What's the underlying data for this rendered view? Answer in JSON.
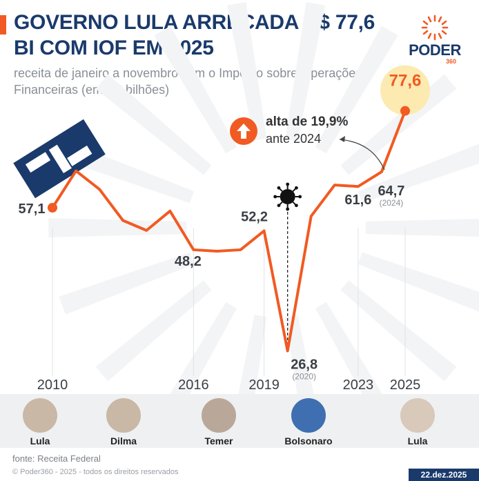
{
  "header": {
    "title": "GOVERNO LULA ARRECADA R$ 77,6 BI COM IOF EM 2025",
    "subtitle": "receita de janeiro a novembro com o Imposto sobre Operações Financeiras (em R$ bilhões)"
  },
  "brand": {
    "name": "PODER",
    "number": "360",
    "color": "#f15a22",
    "navy": "#1a3a6b"
  },
  "chart_data": {
    "type": "line",
    "title": "GOVERNO LULA ARRECADA R$ 77,6 BI COM IOF EM 2025",
    "ylabel": "",
    "xlabel": "",
    "ylim": [
      20,
      85
    ],
    "x": [
      2010,
      2011,
      2012,
      2013,
      2014,
      2015,
      2016,
      2017,
      2018,
      2019,
      2020,
      2021,
      2022,
      2023,
      2024,
      2025
    ],
    "series": [
      {
        "values": [
          57.1,
          64.9,
          61.0,
          54.4,
          52.3,
          56.4,
          48.2,
          47.9,
          48.2,
          52.2,
          26.8,
          55.3,
          61.9,
          61.6,
          64.7,
          77.6
        ]
      }
    ],
    "x_ticks": [
      "2010",
      "2016",
      "2019",
      "2023",
      "2025"
    ],
    "point_labels": [
      {
        "index": 0,
        "text": "57,1",
        "note": ""
      },
      {
        "index": 6,
        "text": "48,2",
        "note": ""
      },
      {
        "index": 9,
        "text": "52,2",
        "note": ""
      },
      {
        "index": 10,
        "text": "26,8",
        "note": "(2020)"
      },
      {
        "index": 13,
        "text": "61,6",
        "note": ""
      },
      {
        "index": 14,
        "text": "64,7",
        "note": "(2024)"
      },
      {
        "index": 15,
        "text": "77,6",
        "note": ""
      }
    ],
    "line_color": "#f15a22",
    "highlight_color": "#fdeab0"
  },
  "callout": {
    "line1": "alta de 19,9%",
    "line2": "ante 2024"
  },
  "presidents": [
    {
      "name": "Lula"
    },
    {
      "name": "Dilma"
    },
    {
      "name": "Temer"
    },
    {
      "name": "Bolsonaro"
    },
    {
      "name": "Lula"
    }
  ],
  "footer": {
    "source": "fonte: Receita Federal",
    "copyright": "© Poder360 - 2025 - todos os direitos reservados",
    "date": "22.dez.2025"
  }
}
